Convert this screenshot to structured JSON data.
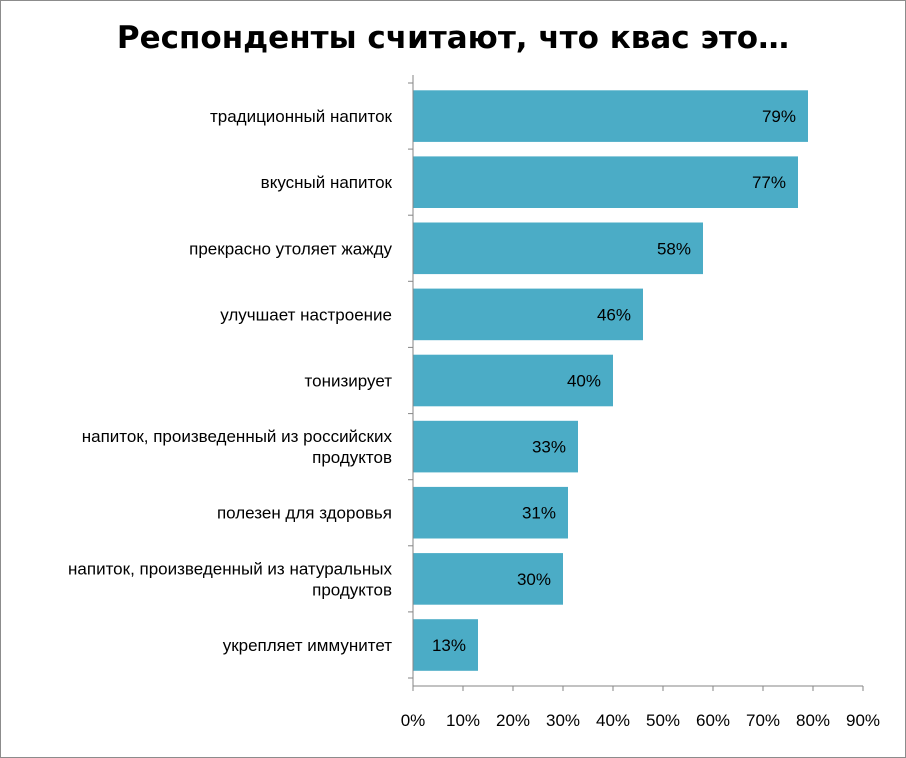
{
  "chart_data": {
    "type": "bar",
    "orientation": "horizontal",
    "title": "Респонденты считают, что квас это…",
    "categories": [
      [
        "традиционный напиток"
      ],
      [
        "вкусный напиток"
      ],
      [
        "прекрасно утоляет жажду"
      ],
      [
        "улучшает настроение"
      ],
      [
        "тонизирует"
      ],
      [
        "напиток, произведенный из российских",
        "продуктов"
      ],
      [
        "полезен для здоровья"
      ],
      [
        "напиток, произведенный из натуральных",
        "продуктов"
      ],
      [
        "укрепляет иммунитет"
      ]
    ],
    "values": [
      79,
      77,
      58,
      46,
      40,
      33,
      31,
      30,
      13
    ],
    "data_labels": [
      "79%",
      "77%",
      "58%",
      "46%",
      "40%",
      "33%",
      "31%",
      "30%",
      "13%"
    ],
    "xlim": [
      0,
      90
    ],
    "x_ticks": [
      "0%",
      "10%",
      "20%",
      "30%",
      "40%",
      "50%",
      "60%",
      "70%",
      "80%",
      "90%"
    ],
    "grid": false,
    "legend": "none",
    "bar_color": "#4bacc6",
    "axis_color": "#868686"
  }
}
